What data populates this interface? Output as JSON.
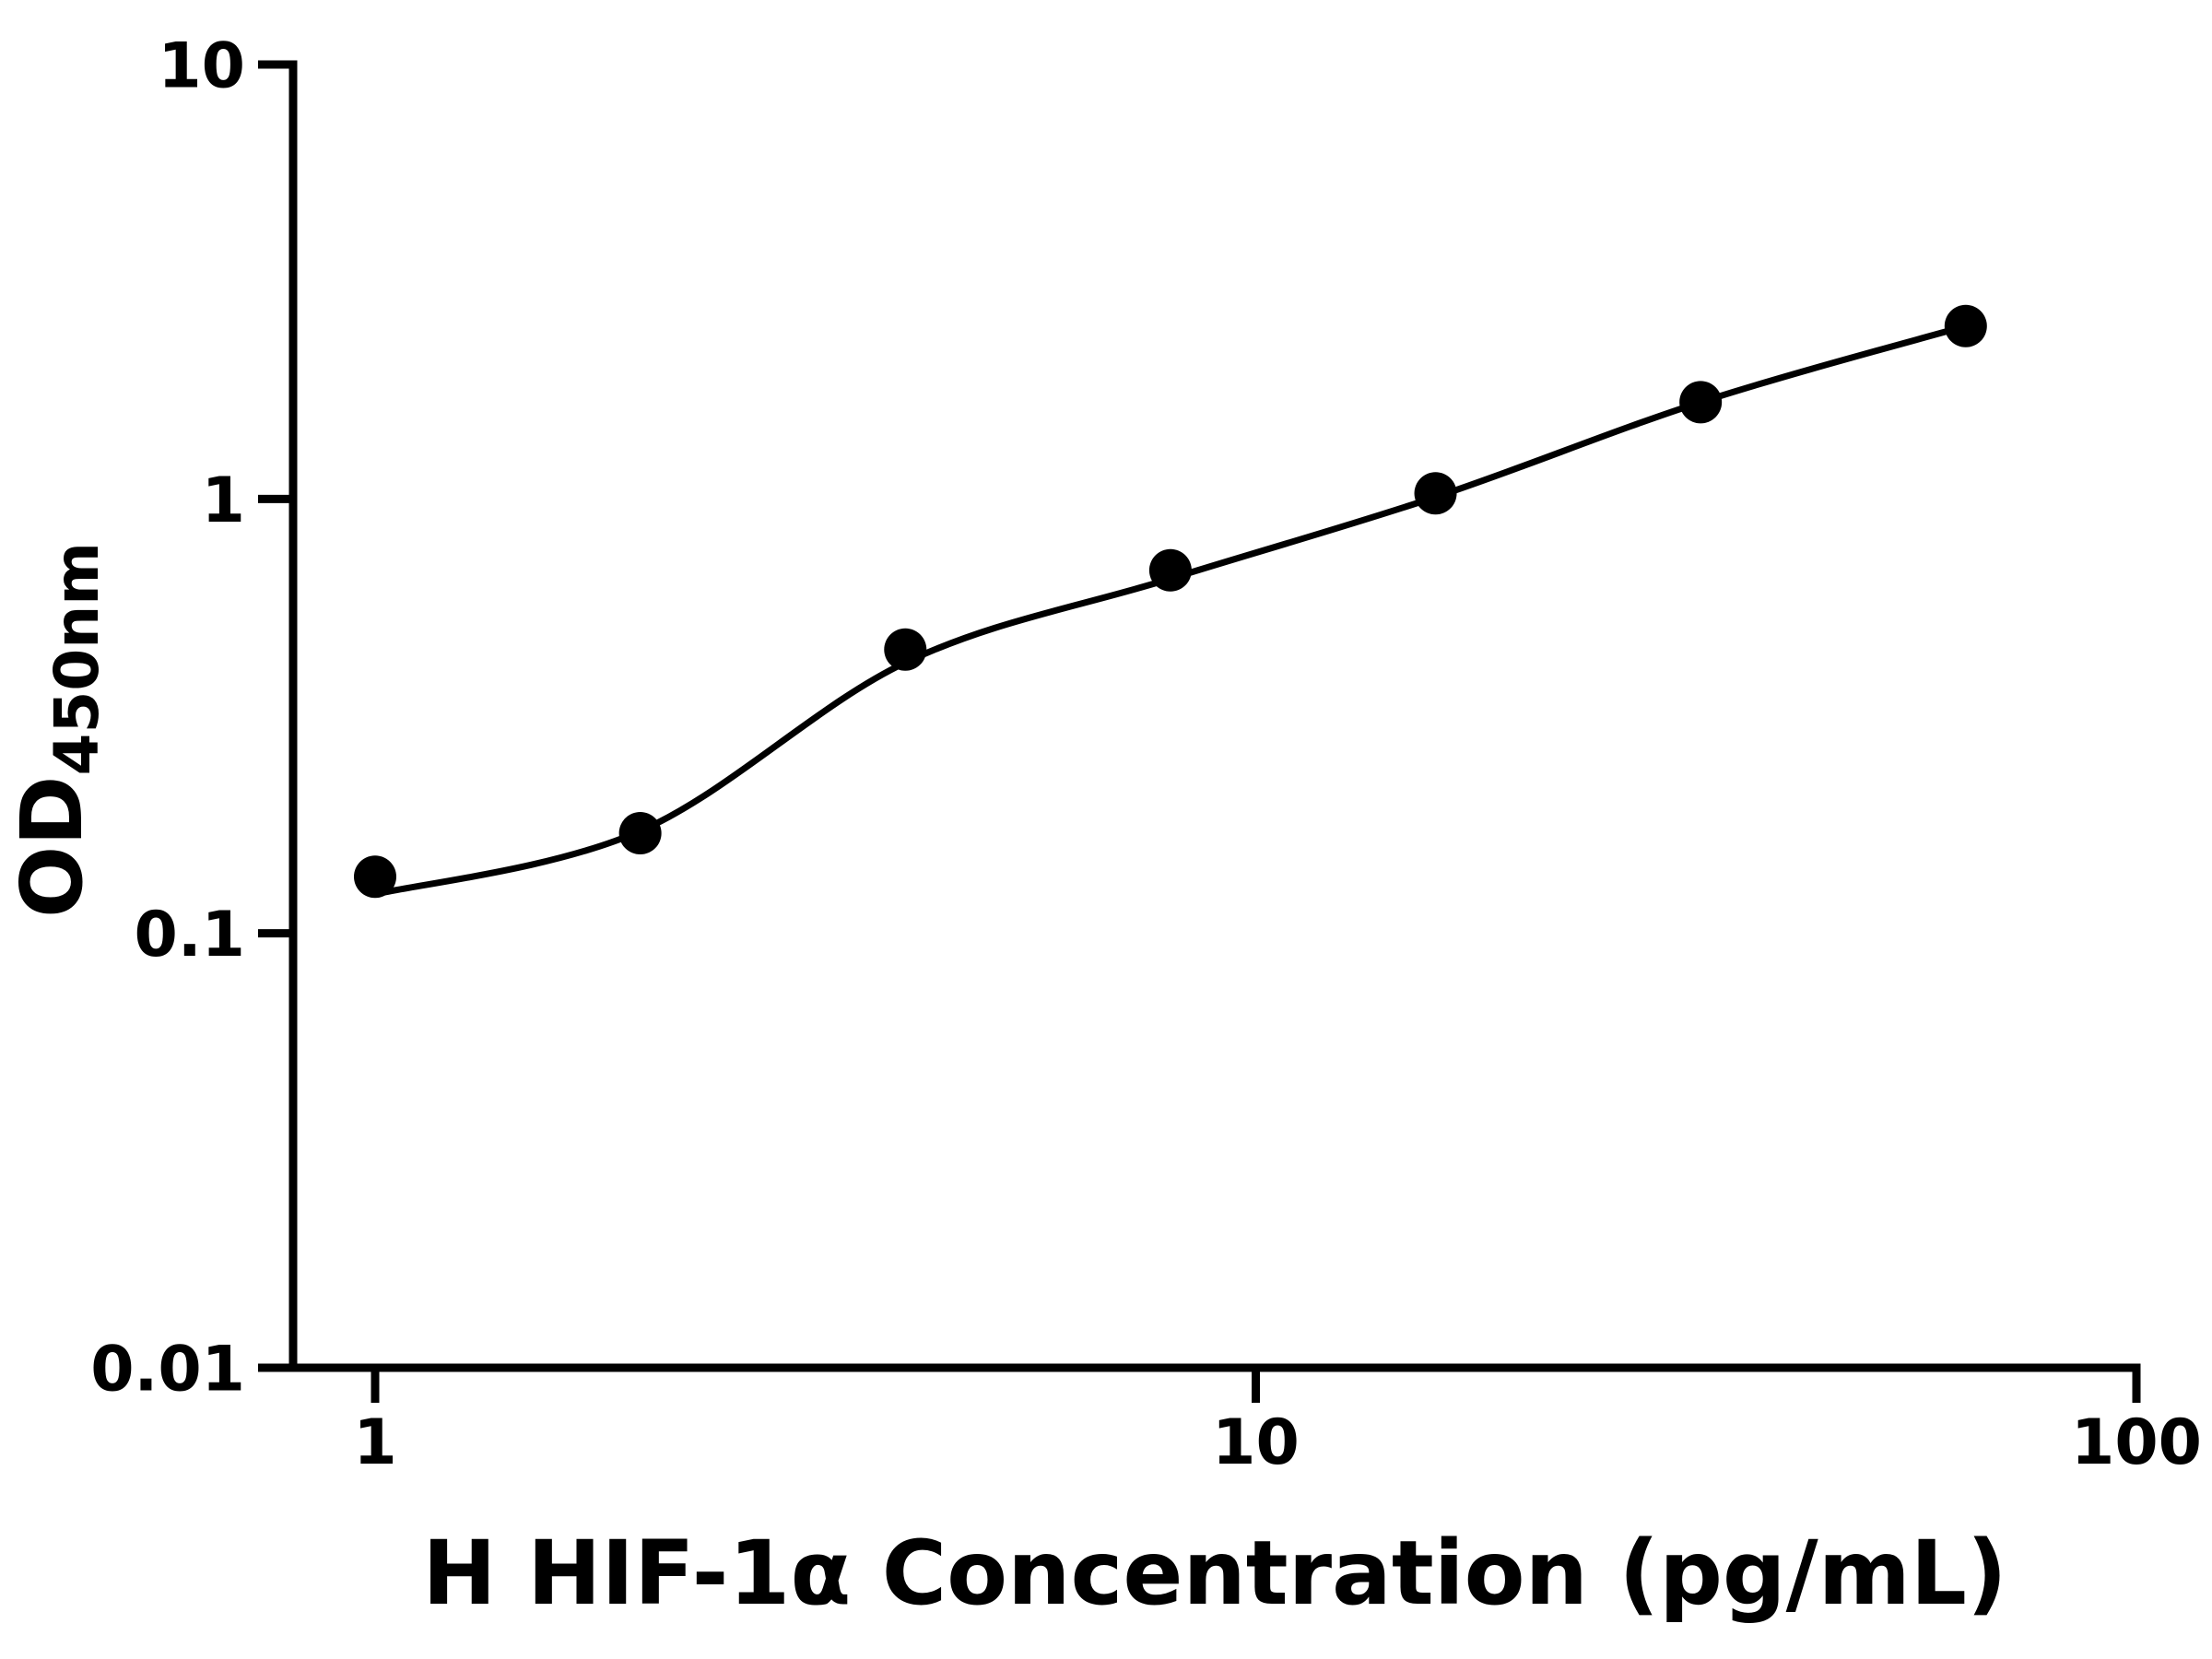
{
  "chart_data": {
    "type": "scatter",
    "title": "",
    "xlabel": "H HIF-1α Concentration (pg/mL)",
    "ylabel": "OD450nm",
    "ylabel_main": "OD",
    "ylabel_sub": "450nm",
    "xscale": "log",
    "yscale": "log",
    "xlim": [
      1,
      100
    ],
    "ylim": [
      0.01,
      10
    ],
    "grid": false,
    "legend": false,
    "x": [
      1,
      2,
      4,
      8,
      16,
      32,
      64
    ],
    "y": [
      0.135,
      0.17,
      0.45,
      0.685,
      1.03,
      1.67,
      2.5
    ],
    "fit_curve": {
      "x": [
        1,
        2,
        4,
        8,
        16,
        32,
        64
      ],
      "y": [
        0.123,
        0.172,
        0.42,
        0.655,
        1.01,
        1.67,
        2.5
      ]
    },
    "x_ticks": [
      {
        "value": 1,
        "label": "1"
      },
      {
        "value": 10,
        "label": "10"
      },
      {
        "value": 100,
        "label": "100"
      }
    ],
    "y_ticks": [
      {
        "value": 10,
        "label": "10"
      },
      {
        "value": 1,
        "label": "1"
      },
      {
        "value": 0.1,
        "label": "0.1"
      },
      {
        "value": 0.01,
        "label": "0.01"
      }
    ],
    "colors": {
      "marker": "#000000",
      "curve": "#000000",
      "axis": "#000000",
      "text": "#000000",
      "background": "#ffffff"
    },
    "marker": {
      "shape": "circle",
      "radius_px": 23
    }
  }
}
